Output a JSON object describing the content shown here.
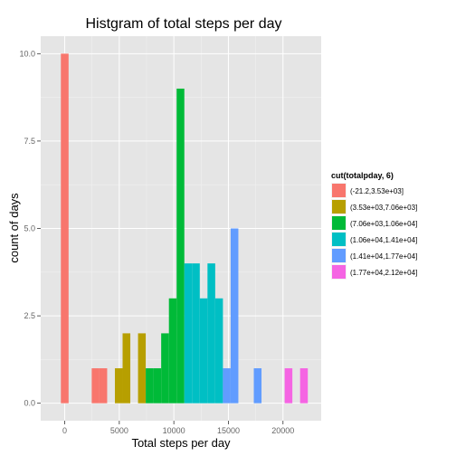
{
  "chart_data": {
    "type": "bar",
    "title": "Histgram of total steps per day",
    "xlabel": "Total steps per day",
    "ylabel": "count of days",
    "xlim": [
      -2200,
      23500
    ],
    "ylim": [
      -0.5,
      10.5
    ],
    "xticks": [
      0,
      5000,
      10000,
      15000,
      20000
    ],
    "xtick_labels": [
      "0",
      "5000",
      "10000",
      "15000",
      "20000"
    ],
    "yticks": [
      0,
      2.5,
      5,
      7.5,
      10
    ],
    "ytick_labels": [
      "0.0",
      "2.5",
      "5.0",
      "7.5",
      "10.0"
    ],
    "grid": true,
    "bin_width": 707,
    "legend": {
      "title": "cut(totalpday, 6)",
      "position": "right",
      "items": [
        {
          "label": "(-21.2,3.53e+03]",
          "color": "#F8766D"
        },
        {
          "label": "(3.53e+03,7.06e+03]",
          "color": "#B79F00"
        },
        {
          "label": "(7.06e+03,1.06e+04]",
          "color": "#00BA38"
        },
        {
          "label": "(1.06e+04,1.41e+04]",
          "color": "#00BFC4"
        },
        {
          "label": "(1.41e+04,1.77e+04]",
          "color": "#619CFF"
        },
        {
          "label": "(1.77e+04,2.12e+04]",
          "color": "#F564E3"
        }
      ]
    },
    "bars": [
      {
        "x": 0,
        "count": 10,
        "group": 0
      },
      {
        "x": 2828,
        "count": 1,
        "group": 0
      },
      {
        "x": 3535,
        "count": 1,
        "group": 0
      },
      {
        "x": 4950,
        "count": 1,
        "group": 1
      },
      {
        "x": 5657,
        "count": 2,
        "group": 1
      },
      {
        "x": 7071,
        "count": 2,
        "group": 1
      },
      {
        "x": 7778,
        "count": 1,
        "group": 2
      },
      {
        "x": 8485,
        "count": 1,
        "group": 2
      },
      {
        "x": 9192,
        "count": 2,
        "group": 2
      },
      {
        "x": 9900,
        "count": 3,
        "group": 2
      },
      {
        "x": 10607,
        "count": 9,
        "group": 2
      },
      {
        "x": 11314,
        "count": 4,
        "group": 3
      },
      {
        "x": 12021,
        "count": 4,
        "group": 3
      },
      {
        "x": 12728,
        "count": 3,
        "group": 3
      },
      {
        "x": 13435,
        "count": 4,
        "group": 3
      },
      {
        "x": 14142,
        "count": 3,
        "group": 3
      },
      {
        "x": 14849,
        "count": 1,
        "group": 4
      },
      {
        "x": 15556,
        "count": 5,
        "group": 4
      },
      {
        "x": 17678,
        "count": 1,
        "group": 4
      },
      {
        "x": 20506,
        "count": 1,
        "group": 5
      },
      {
        "x": 21920,
        "count": 1,
        "group": 5
      }
    ]
  },
  "colors": {
    "panel": "#E5E5E5",
    "grid_major": "#FFFFFF",
    "grid_minor": "#F2F2F2"
  }
}
